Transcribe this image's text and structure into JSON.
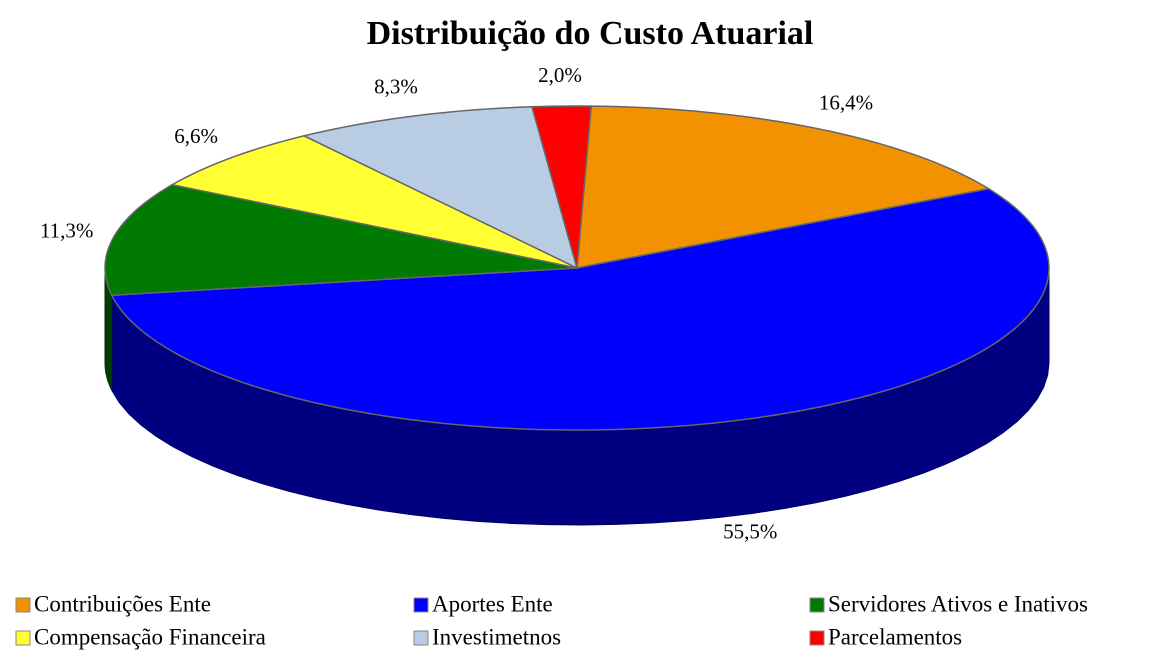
{
  "chart_data": {
    "type": "pie",
    "title": "Distribuição do Custo Atuarial",
    "categories": [
      "Contribuições Ente",
      "Aportes Ente",
      "Servidores Ativos e Inativos",
      "Compensação Financeira",
      "Investimetnos",
      "Parcelamentos"
    ],
    "values": [
      16.4,
      55.5,
      11.3,
      6.6,
      8.3,
      2.0
    ],
    "value_labels": [
      "16,4%",
      "55,5%",
      "11,3%",
      "6,6%",
      "8,3%",
      "2,0%"
    ],
    "colors": [
      "#f39200",
      "#0000ff",
      "#007a00",
      "#ffff33",
      "#b8cce4",
      "#ff0000"
    ],
    "legend": "bottom"
  }
}
